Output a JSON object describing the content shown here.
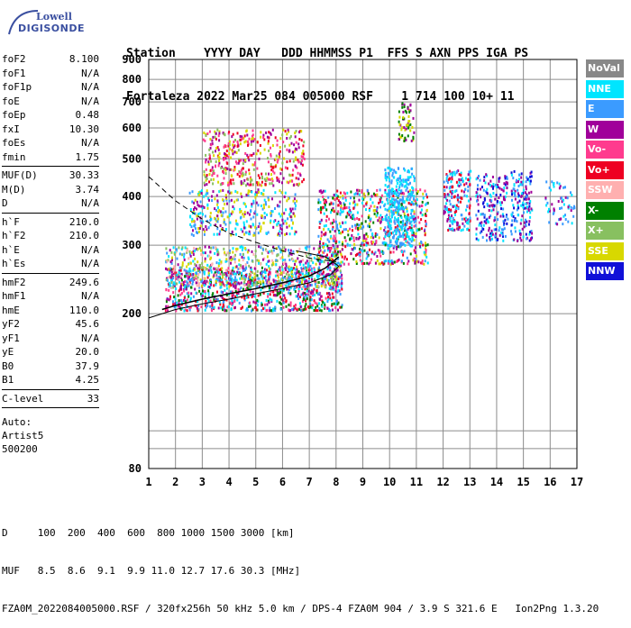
{
  "logo": {
    "line1": "Lowell",
    "line2": "DIGISONDE"
  },
  "header": {
    "line1": "Station    YYYY DAY   DDD HHMMSS P1  FFS S AXN PPS IGA PS",
    "line2": "Fortaleza 2022 Mar25 084 005000 RSF    1 714 100 10+ 11"
  },
  "params": {
    "group1": [
      {
        "label": "foF2",
        "value": "8.100"
      },
      {
        "label": "foF1",
        "value": "N/A"
      },
      {
        "label": "foF1p",
        "value": "N/A"
      },
      {
        "label": "foE",
        "value": "N/A"
      },
      {
        "label": "foEp",
        "value": "0.48"
      },
      {
        "label": "fxI",
        "value": "10.30"
      },
      {
        "label": "foEs",
        "value": "N/A"
      },
      {
        "label": "fmin",
        "value": "1.75"
      }
    ],
    "group2": [
      {
        "label": "MUF(D)",
        "value": "30.33"
      },
      {
        "label": "M(D)",
        "value": "3.74"
      },
      {
        "label": "D",
        "value": "N/A"
      }
    ],
    "group3": [
      {
        "label": "h`F",
        "value": "210.0"
      },
      {
        "label": "h`F2",
        "value": "210.0"
      },
      {
        "label": "h`E",
        "value": "N/A"
      },
      {
        "label": "h`Es",
        "value": "N/A"
      }
    ],
    "group4": [
      {
        "label": "hmF2",
        "value": "249.6"
      },
      {
        "label": "hmF1",
        "value": "N/A"
      },
      {
        "label": "hmE",
        "value": "110.0"
      },
      {
        "label": "yF2",
        "value": "45.6"
      },
      {
        "label": "yF1",
        "value": "N/A"
      },
      {
        "label": "yE",
        "value": "20.0"
      },
      {
        "label": "B0",
        "value": "37.9"
      },
      {
        "label": "B1",
        "value": "4.25"
      }
    ],
    "clevel": {
      "label": "C-level",
      "value": "33"
    },
    "auto": [
      "Auto:",
      "Artist5",
      "500200"
    ]
  },
  "legend": [
    {
      "label": "NoVal",
      "color": "#888888"
    },
    {
      "label": "NNE",
      "color": "#00e5ff"
    },
    {
      "label": "E",
      "color": "#3b9bff"
    },
    {
      "label": "W",
      "color": "#a0009a"
    },
    {
      "label": "Vo-",
      "color": "#ff3b8e"
    },
    {
      "label": "Vo+",
      "color": "#ee0022"
    },
    {
      "label": "SSW",
      "color": "#ffb0b0"
    },
    {
      "label": "X-",
      "color": "#008000"
    },
    {
      "label": "X+",
      "color": "#88c060"
    },
    {
      "label": "SSE",
      "color": "#d8d800"
    },
    {
      "label": "NNW",
      "color": "#1010d8"
    }
  ],
  "footer": {
    "line1": "D     100  200  400  600  800 1000 1500 3000 [km]",
    "line2": "MUF   8.5  8.6  9.1  9.9 11.0 12.7 17.6 30.3 [MHz]",
    "line3": "FZA0M_2022084005000.RSF / 320fx256h 50 kHz 5.0 km / DPS-4 FZA0M 904 / 3.9 S 321.6 E   Ion2Png 1.3.20"
  },
  "chart_data": {
    "type": "scatter",
    "x_ticks": [
      1,
      2,
      3,
      4,
      5,
      6,
      7,
      8,
      9,
      10,
      11,
      12,
      13,
      14,
      15,
      16,
      17
    ],
    "y_ticks": [
      80,
      200,
      300,
      400,
      500,
      600,
      700,
      800,
      900
    ],
    "xlim": [
      1,
      17
    ],
    "ylim": [
      80,
      900
    ],
    "y_scale": "log",
    "grid": true,
    "ordinary_trace": [
      [
        1.5,
        205
      ],
      [
        2,
        210
      ],
      [
        3,
        218
      ],
      [
        4,
        225
      ],
      [
        5,
        232
      ],
      [
        6,
        240
      ],
      [
        7,
        250
      ],
      [
        7.6,
        262
      ],
      [
        8.1,
        280
      ]
    ],
    "profile_curve": [
      [
        1,
        195
      ],
      [
        2,
        205
      ],
      [
        3,
        212
      ],
      [
        4,
        218
      ],
      [
        5,
        225
      ],
      [
        6,
        232
      ],
      [
        7,
        240
      ],
      [
        7.8,
        252
      ],
      [
        8.1,
        265
      ],
      [
        7.6,
        280
      ],
      [
        6.5,
        290
      ]
    ],
    "dashed_curve": [
      [
        1,
        450
      ],
      [
        2,
        390
      ],
      [
        3,
        350
      ],
      [
        4,
        322
      ],
      [
        5,
        305
      ],
      [
        6,
        290
      ],
      [
        7,
        278
      ],
      [
        8,
        272
      ]
    ],
    "clusters": [
      {
        "name": "O-trace",
        "x": [
          1.6,
          8.2
        ],
        "y": [
          205,
          265
        ],
        "colors": [
          "#ee0022",
          "#ff3b8e",
          "#a0009a",
          "#008000",
          "#3b9bff",
          "#00e5ff"
        ],
        "n": 900
      },
      {
        "name": "F-band",
        "x": [
          1.6,
          8.2
        ],
        "y": [
          235,
          300
        ],
        "colors": [
          "#00e5ff",
          "#3b9bff",
          "#ffb0b0",
          "#88c060",
          "#d8d800",
          "#a0009a"
        ],
        "n": 700
      },
      {
        "name": "spread-1",
        "x": [
          2.5,
          6.5
        ],
        "y": [
          320,
          420
        ],
        "colors": [
          "#a0009a",
          "#00e5ff",
          "#3b9bff",
          "#d8d800"
        ],
        "n": 350
      },
      {
        "name": "spread-2",
        "x": [
          3.0,
          6.8
        ],
        "y": [
          430,
          600
        ],
        "colors": [
          "#d8d800",
          "#ff3b8e",
          "#88c060",
          "#a0009a",
          "#ee0022"
        ],
        "n": 420
      },
      {
        "name": "mid-F",
        "x": [
          7.3,
          11.4
        ],
        "y": [
          270,
          420
        ],
        "colors": [
          "#ee0022",
          "#a0009a",
          "#d8d800",
          "#3b9bff",
          "#ff3b8e",
          "#008000",
          "#00e5ff"
        ],
        "n": 700
      },
      {
        "name": "upper",
        "x": [
          9.8,
          10.9
        ],
        "y": [
          300,
          480
        ],
        "colors": [
          "#00e5ff",
          "#3b9bff"
        ],
        "n": 300
      },
      {
        "name": "high",
        "x": [
          10.3,
          10.9
        ],
        "y": [
          560,
          700
        ],
        "colors": [
          "#d8d800",
          "#a0009a",
          "#008000"
        ],
        "n": 60
      },
      {
        "name": "far-1",
        "x": [
          12.0,
          13.0
        ],
        "y": [
          330,
          470
        ],
        "colors": [
          "#3b9bff",
          "#a0009a",
          "#ee0022",
          "#00e5ff"
        ],
        "n": 180
      },
      {
        "name": "far-2",
        "x": [
          13.2,
          14.4
        ],
        "y": [
          310,
          460
        ],
        "colors": [
          "#a0009a",
          "#3b9bff",
          "#1010d8",
          "#00e5ff"
        ],
        "n": 180
      },
      {
        "name": "far-3",
        "x": [
          14.5,
          15.3
        ],
        "y": [
          310,
          470
        ],
        "colors": [
          "#a0009a",
          "#1010d8",
          "#3b9bff",
          "#00e5ff"
        ],
        "n": 150
      },
      {
        "name": "far-4",
        "x": [
          15.8,
          16.9
        ],
        "y": [
          340,
          440
        ],
        "colors": [
          "#3b9bff",
          "#00e5ff",
          "#a0009a"
        ],
        "n": 60
      }
    ]
  }
}
